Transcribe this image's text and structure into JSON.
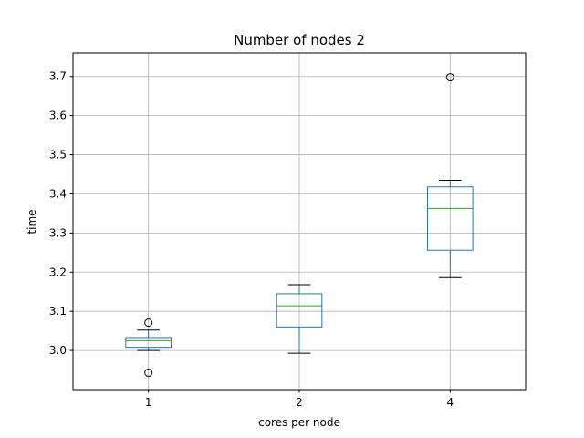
{
  "chart_data": {
    "type": "boxplot",
    "title": "Number of nodes 2",
    "xlabel": "cores per node",
    "ylabel": "time",
    "categories": [
      "1",
      "2",
      "4"
    ],
    "boxes": [
      {
        "category": "1",
        "whisker_low": 3.0,
        "q1": 3.008,
        "median": 3.025,
        "q3": 3.033,
        "whisker_high": 3.052,
        "fliers": [
          3.071,
          2.943
        ]
      },
      {
        "category": "2",
        "whisker_low": 2.993,
        "q1": 3.06,
        "median": 3.114,
        "q3": 3.145,
        "whisker_high": 3.168,
        "fliers": []
      },
      {
        "category": "4",
        "whisker_low": 3.186,
        "q1": 3.256,
        "median": 3.363,
        "q3": 3.418,
        "whisker_high": 3.435,
        "fliers": [
          3.698
        ]
      }
    ],
    "yticks": [
      "3.0",
      "3.1",
      "3.2",
      "3.3",
      "3.4",
      "3.5",
      "3.6",
      "3.7"
    ],
    "ylim": [
      2.9,
      3.76
    ],
    "grid": true,
    "colors": {
      "box": "#1f77b4",
      "median": "#2ca02c",
      "cap": "#000000",
      "grid": "#b0b0b0"
    }
  }
}
